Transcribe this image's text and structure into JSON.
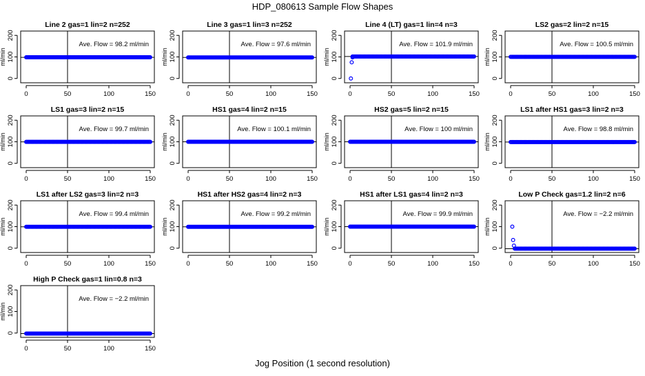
{
  "figure": {
    "title": "HDP_080613  Sample Flow Shapes",
    "xlabel": "Jog Position (1 second resolution)"
  },
  "style": {
    "point_color": "#0000ff",
    "axis_color": "#000000"
  },
  "chart_data": [
    {
      "type": "scatter",
      "title": "Line 2 gas=1 lin=2 n=252",
      "annotation": "Ave. Flow =  98.2  ml/min",
      "ylabel": "ml/min",
      "xlim": [
        0,
        150
      ],
      "ylim": [
        -20,
        220
      ],
      "xticks": [
        0,
        50,
        100,
        150
      ],
      "yticks": [
        0,
        100,
        200
      ],
      "vline": 50,
      "hline": 98.2,
      "series": [
        {
          "kind": "flat",
          "x_range": [
            0,
            150
          ],
          "y": 98.2
        }
      ]
    },
    {
      "type": "scatter",
      "title": "Line 3 gas=1 lin=3 n=252",
      "annotation": "Ave. Flow =  97.6  ml/min",
      "ylabel": "ml/min",
      "xlim": [
        0,
        150
      ],
      "ylim": [
        -20,
        220
      ],
      "xticks": [
        0,
        50,
        100,
        150
      ],
      "yticks": [
        0,
        100,
        200
      ],
      "vline": 50,
      "hline": 97.6,
      "series": [
        {
          "kind": "flat",
          "x_range": [
            0,
            150
          ],
          "y": 97.6
        }
      ]
    },
    {
      "type": "scatter",
      "title": "Line 4 (LT) gas=1 lin=4 n=3",
      "annotation": "Ave. Flow =  101.9  ml/min",
      "ylabel": "ml/min",
      "xlim": [
        0,
        150
      ],
      "ylim": [
        -20,
        220
      ],
      "xticks": [
        0,
        50,
        100,
        150
      ],
      "yticks": [
        0,
        100,
        200
      ],
      "vline": 50,
      "hline": 101.9,
      "series": [
        {
          "kind": "flat",
          "x_range": [
            3,
            150
          ],
          "y": 102,
          "extra_points": [
            [
              1,
              0
            ],
            [
              2,
              75
            ],
            [
              3,
              98
            ]
          ]
        }
      ]
    },
    {
      "type": "scatter",
      "title": "LS2 gas=2 lin=2 n=15",
      "annotation": "Ave. Flow =  100.5  ml/min",
      "ylabel": "ml/min",
      "xlim": [
        0,
        150
      ],
      "ylim": [
        -20,
        220
      ],
      "xticks": [
        0,
        50,
        100,
        150
      ],
      "yticks": [
        0,
        100,
        200
      ],
      "vline": 50,
      "hline": 100.5,
      "series": [
        {
          "kind": "flat",
          "x_range": [
            0,
            150
          ],
          "y": 100.5
        }
      ]
    },
    {
      "type": "scatter",
      "title": "LS1 gas=3 lin=2 n=15",
      "annotation": "Ave. Flow =  99.7  ml/min",
      "ylabel": "ml/min",
      "xlim": [
        0,
        150
      ],
      "ylim": [
        -20,
        220
      ],
      "xticks": [
        0,
        50,
        100,
        150
      ],
      "yticks": [
        0,
        100,
        200
      ],
      "vline": 50,
      "hline": 99.7,
      "series": [
        {
          "kind": "flat",
          "x_range": [
            0,
            150
          ],
          "y": 99.7
        }
      ]
    },
    {
      "type": "scatter",
      "title": "HS1 gas=4 lin=2 n=15",
      "annotation": "Ave. Flow =  100.1  ml/min",
      "ylabel": "ml/min",
      "xlim": [
        0,
        150
      ],
      "ylim": [
        -20,
        220
      ],
      "xticks": [
        0,
        50,
        100,
        150
      ],
      "yticks": [
        0,
        100,
        200
      ],
      "vline": 50,
      "hline": 100.1,
      "series": [
        {
          "kind": "flat",
          "x_range": [
            0,
            150
          ],
          "y": 100.1
        }
      ]
    },
    {
      "type": "scatter",
      "title": "HS2 gas=5 lin=2 n=15",
      "annotation": "Ave. Flow =  100  ml/min",
      "ylabel": "ml/min",
      "xlim": [
        0,
        150
      ],
      "ylim": [
        -20,
        220
      ],
      "xticks": [
        0,
        50,
        100,
        150
      ],
      "yticks": [
        0,
        100,
        200
      ],
      "vline": 50,
      "hline": 100,
      "series": [
        {
          "kind": "flat",
          "x_range": [
            0,
            150
          ],
          "y": 100
        }
      ]
    },
    {
      "type": "scatter",
      "title": "LS1 after HS1 gas=3 lin=2 n=3",
      "annotation": "Ave. Flow =  98.8  ml/min",
      "ylabel": "ml/min",
      "xlim": [
        0,
        150
      ],
      "ylim": [
        -20,
        220
      ],
      "xticks": [
        0,
        50,
        100,
        150
      ],
      "yticks": [
        0,
        100,
        200
      ],
      "vline": 50,
      "hline": 98.8,
      "series": [
        {
          "kind": "flat",
          "x_range": [
            0,
            150
          ],
          "y": 98.8
        }
      ]
    },
    {
      "type": "scatter",
      "title": "LS1 after LS2 gas=3 lin=2 n=3",
      "annotation": "Ave. Flow =  99.4  ml/min",
      "ylabel": "ml/min",
      "xlim": [
        0,
        150
      ],
      "ylim": [
        -20,
        220
      ],
      "xticks": [
        0,
        50,
        100,
        150
      ],
      "yticks": [
        0,
        100,
        200
      ],
      "vline": 50,
      "hline": 99.4,
      "series": [
        {
          "kind": "flat",
          "x_range": [
            0,
            150
          ],
          "y": 99.4
        }
      ]
    },
    {
      "type": "scatter",
      "title": "HS1 after HS2 gas=4 lin=2 n=3",
      "annotation": "Ave. Flow =  99.2  ml/min",
      "ylabel": "ml/min",
      "xlim": [
        0,
        150
      ],
      "ylim": [
        -20,
        220
      ],
      "xticks": [
        0,
        50,
        100,
        150
      ],
      "yticks": [
        0,
        100,
        200
      ],
      "vline": 50,
      "hline": 99.2,
      "series": [
        {
          "kind": "flat",
          "x_range": [
            0,
            150
          ],
          "y": 99.2
        }
      ]
    },
    {
      "type": "scatter",
      "title": "HS1 after LS1 gas=4 lin=2 n=3",
      "annotation": "Ave. Flow =  99.9  ml/min",
      "ylabel": "ml/min",
      "xlim": [
        0,
        150
      ],
      "ylim": [
        -20,
        220
      ],
      "xticks": [
        0,
        50,
        100,
        150
      ],
      "yticks": [
        0,
        100,
        200
      ],
      "vline": 50,
      "hline": 99.9,
      "series": [
        {
          "kind": "flat",
          "x_range": [
            0,
            150
          ],
          "y": 99.9
        }
      ]
    },
    {
      "type": "scatter",
      "title": "Low P Check gas=1.2 lin=2 n=6",
      "annotation": "Ave. Flow =  −2.2  ml/min",
      "ylabel": "ml/min",
      "xlim": [
        0,
        150
      ],
      "ylim": [
        -20,
        220
      ],
      "xticks": [
        0,
        50,
        100,
        150
      ],
      "yticks": [
        0,
        100,
        200
      ],
      "vline": 50,
      "hline": -2.2,
      "series": [
        {
          "kind": "flat",
          "x_range": [
            5,
            150
          ],
          "y": -2,
          "extra_points": [
            [
              2,
              100
            ],
            [
              3,
              38
            ],
            [
              4,
              12
            ]
          ]
        }
      ]
    },
    {
      "type": "scatter",
      "title": "High P Check gas=1 lin=0.8 n=3",
      "annotation": "Ave. Flow =  −2.2  ml/min",
      "ylabel": "ml/min",
      "xlim": [
        0,
        150
      ],
      "ylim": [
        -20,
        220
      ],
      "xticks": [
        0,
        50,
        100,
        150
      ],
      "yticks": [
        0,
        100,
        200
      ],
      "vline": 50,
      "hline": -2.2,
      "series": [
        {
          "kind": "flat",
          "x_range": [
            0,
            150
          ],
          "y": -2.2
        }
      ]
    }
  ]
}
